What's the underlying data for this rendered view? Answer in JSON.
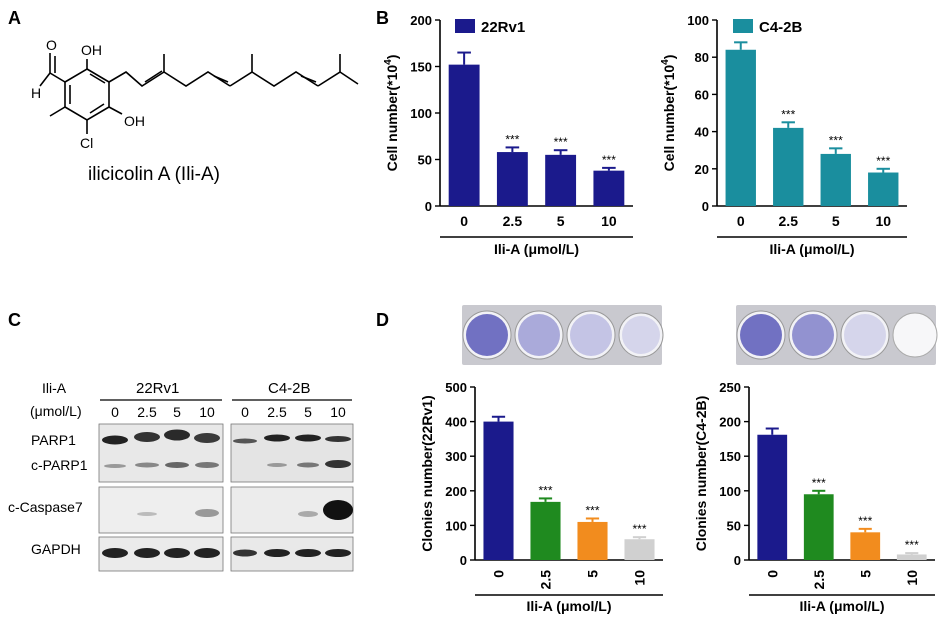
{
  "panels": {
    "A": {
      "letter": "A",
      "compound_name": "ilicicolin A (Ili-A)",
      "atom_labels": [
        "O",
        "H",
        "OH",
        "OH",
        "Cl"
      ]
    },
    "B": {
      "letter": "B"
    },
    "C": {
      "letter": "C",
      "treatment_label": "Ili-A",
      "unit_label": "(μmol/L)",
      "cell_lines": [
        "22Rv1",
        "C4-2B"
      ],
      "doses": [
        "0",
        "2.5",
        "5",
        "10"
      ],
      "bands": [
        "PARP1",
        "c-PARP1",
        "c-Caspase7",
        "GAPDH"
      ]
    },
    "D": {
      "letter": "D"
    }
  },
  "colors": {
    "navy": "#1b1a8c",
    "teal": "#1a8e9e",
    "green": "#1f8a1f",
    "orange": "#f28c1e",
    "grey": "#d0d0d0",
    "plate_stain": "#5a5ab8"
  },
  "chart_data": [
    {
      "id": "B-22Rv1",
      "type": "bar",
      "categories": [
        "0",
        "2.5",
        "5",
        "10"
      ],
      "values": [
        152,
        58,
        55,
        38
      ],
      "errors": [
        13,
        5,
        5,
        3
      ],
      "significance": [
        "",
        "***",
        "***",
        "***"
      ],
      "legend": "22Rv1",
      "ylabel_base": "Cell number(*10",
      "ylabel_sup": "4",
      "ylabel_close": ")",
      "xlabel": "Ili-A (μmol/L)",
      "ylim": [
        0,
        200
      ],
      "yticks": [
        0,
        50,
        100,
        150,
        200
      ],
      "colors": [
        "#1b1a8c",
        "#1b1a8c",
        "#1b1a8c",
        "#1b1a8c"
      ]
    },
    {
      "id": "B-C4-2B",
      "type": "bar",
      "categories": [
        "0",
        "2.5",
        "5",
        "10"
      ],
      "values": [
        84,
        42,
        28,
        18
      ],
      "errors": [
        4,
        3,
        3,
        2
      ],
      "significance": [
        "",
        "***",
        "***",
        "***"
      ],
      "legend": "C4-2B",
      "ylabel_base": "Cell number(*10",
      "ylabel_sup": "4",
      "ylabel_close": ")",
      "xlabel": "Ili-A (μmol/L)",
      "ylim": [
        0,
        100
      ],
      "yticks": [
        0,
        20,
        40,
        60,
        80,
        100
      ],
      "colors": [
        "#1a8e9e",
        "#1a8e9e",
        "#1a8e9e",
        "#1a8e9e"
      ]
    },
    {
      "id": "D-22Rv1",
      "type": "bar",
      "categories": [
        "0",
        "2.5",
        "5",
        "10"
      ],
      "values": [
        400,
        168,
        110,
        60
      ],
      "errors": [
        14,
        10,
        10,
        6
      ],
      "significance": [
        "",
        "***",
        "***",
        "***"
      ],
      "ylabel": "Clonies number(22Rv1)",
      "xlabel": "Ili-A (μmol/L)",
      "ylim": [
        0,
        500
      ],
      "yticks": [
        0,
        100,
        200,
        300,
        400,
        500
      ],
      "colors": [
        "#1b1a8c",
        "#1f8a1f",
        "#f28c1e",
        "#d0d0d0"
      ]
    },
    {
      "id": "D-C4-2B",
      "type": "bar",
      "categories": [
        "0",
        "2.5",
        "5",
        "10"
      ],
      "values": [
        181,
        95,
        40,
        8
      ],
      "errors": [
        9,
        5,
        5,
        2
      ],
      "significance": [
        "",
        "***",
        "***",
        "***"
      ],
      "ylabel": "Clonies number(C4-2B)",
      "xlabel": "Ili-A (μmol/L)",
      "ylim": [
        0,
        250
      ],
      "yticks": [
        0,
        50,
        100,
        150,
        200,
        250
      ],
      "colors": [
        "#1b1a8c",
        "#1f8a1f",
        "#f28c1e",
        "#d0d0d0"
      ]
    }
  ]
}
